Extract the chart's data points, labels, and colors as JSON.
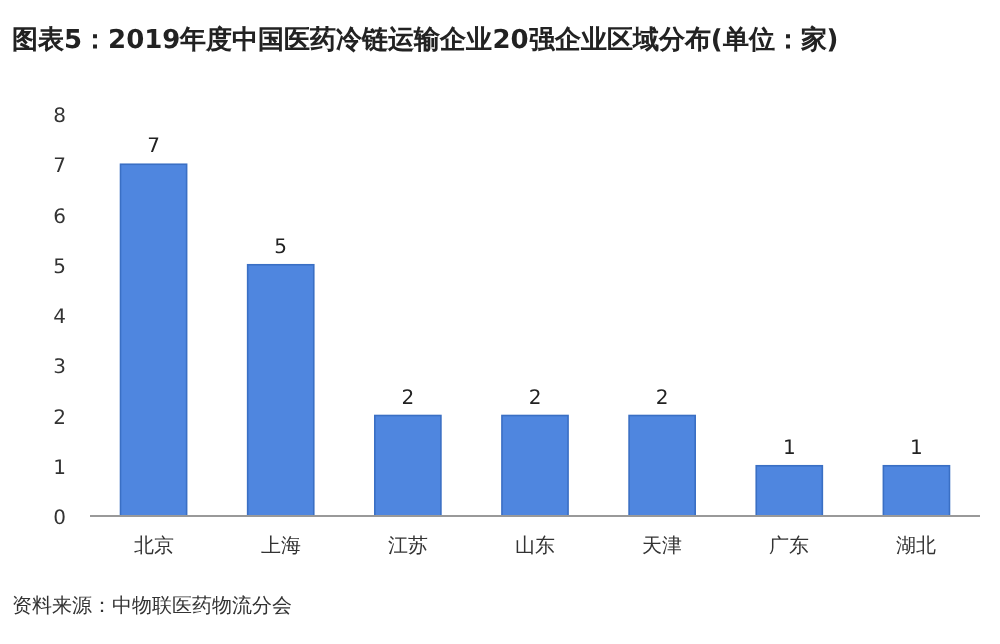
{
  "chart_data": {
    "type": "bar",
    "title": "图表5：2019年度中国医药冷链运输企业20强企业区域分布(单位：家)",
    "categories": [
      "北京",
      "上海",
      "江苏",
      "山东",
      "天津",
      "广东",
      "湖北"
    ],
    "values": [
      7,
      5,
      2,
      2,
      2,
      1,
      1
    ],
    "color": "#4f86df",
    "ylim": [
      0,
      8
    ],
    "yticks": [
      0,
      1,
      2,
      3,
      4,
      5,
      6,
      7,
      8
    ],
    "data_labels": true,
    "annotations": [
      "资料来源：中物联医药物流分会"
    ]
  }
}
